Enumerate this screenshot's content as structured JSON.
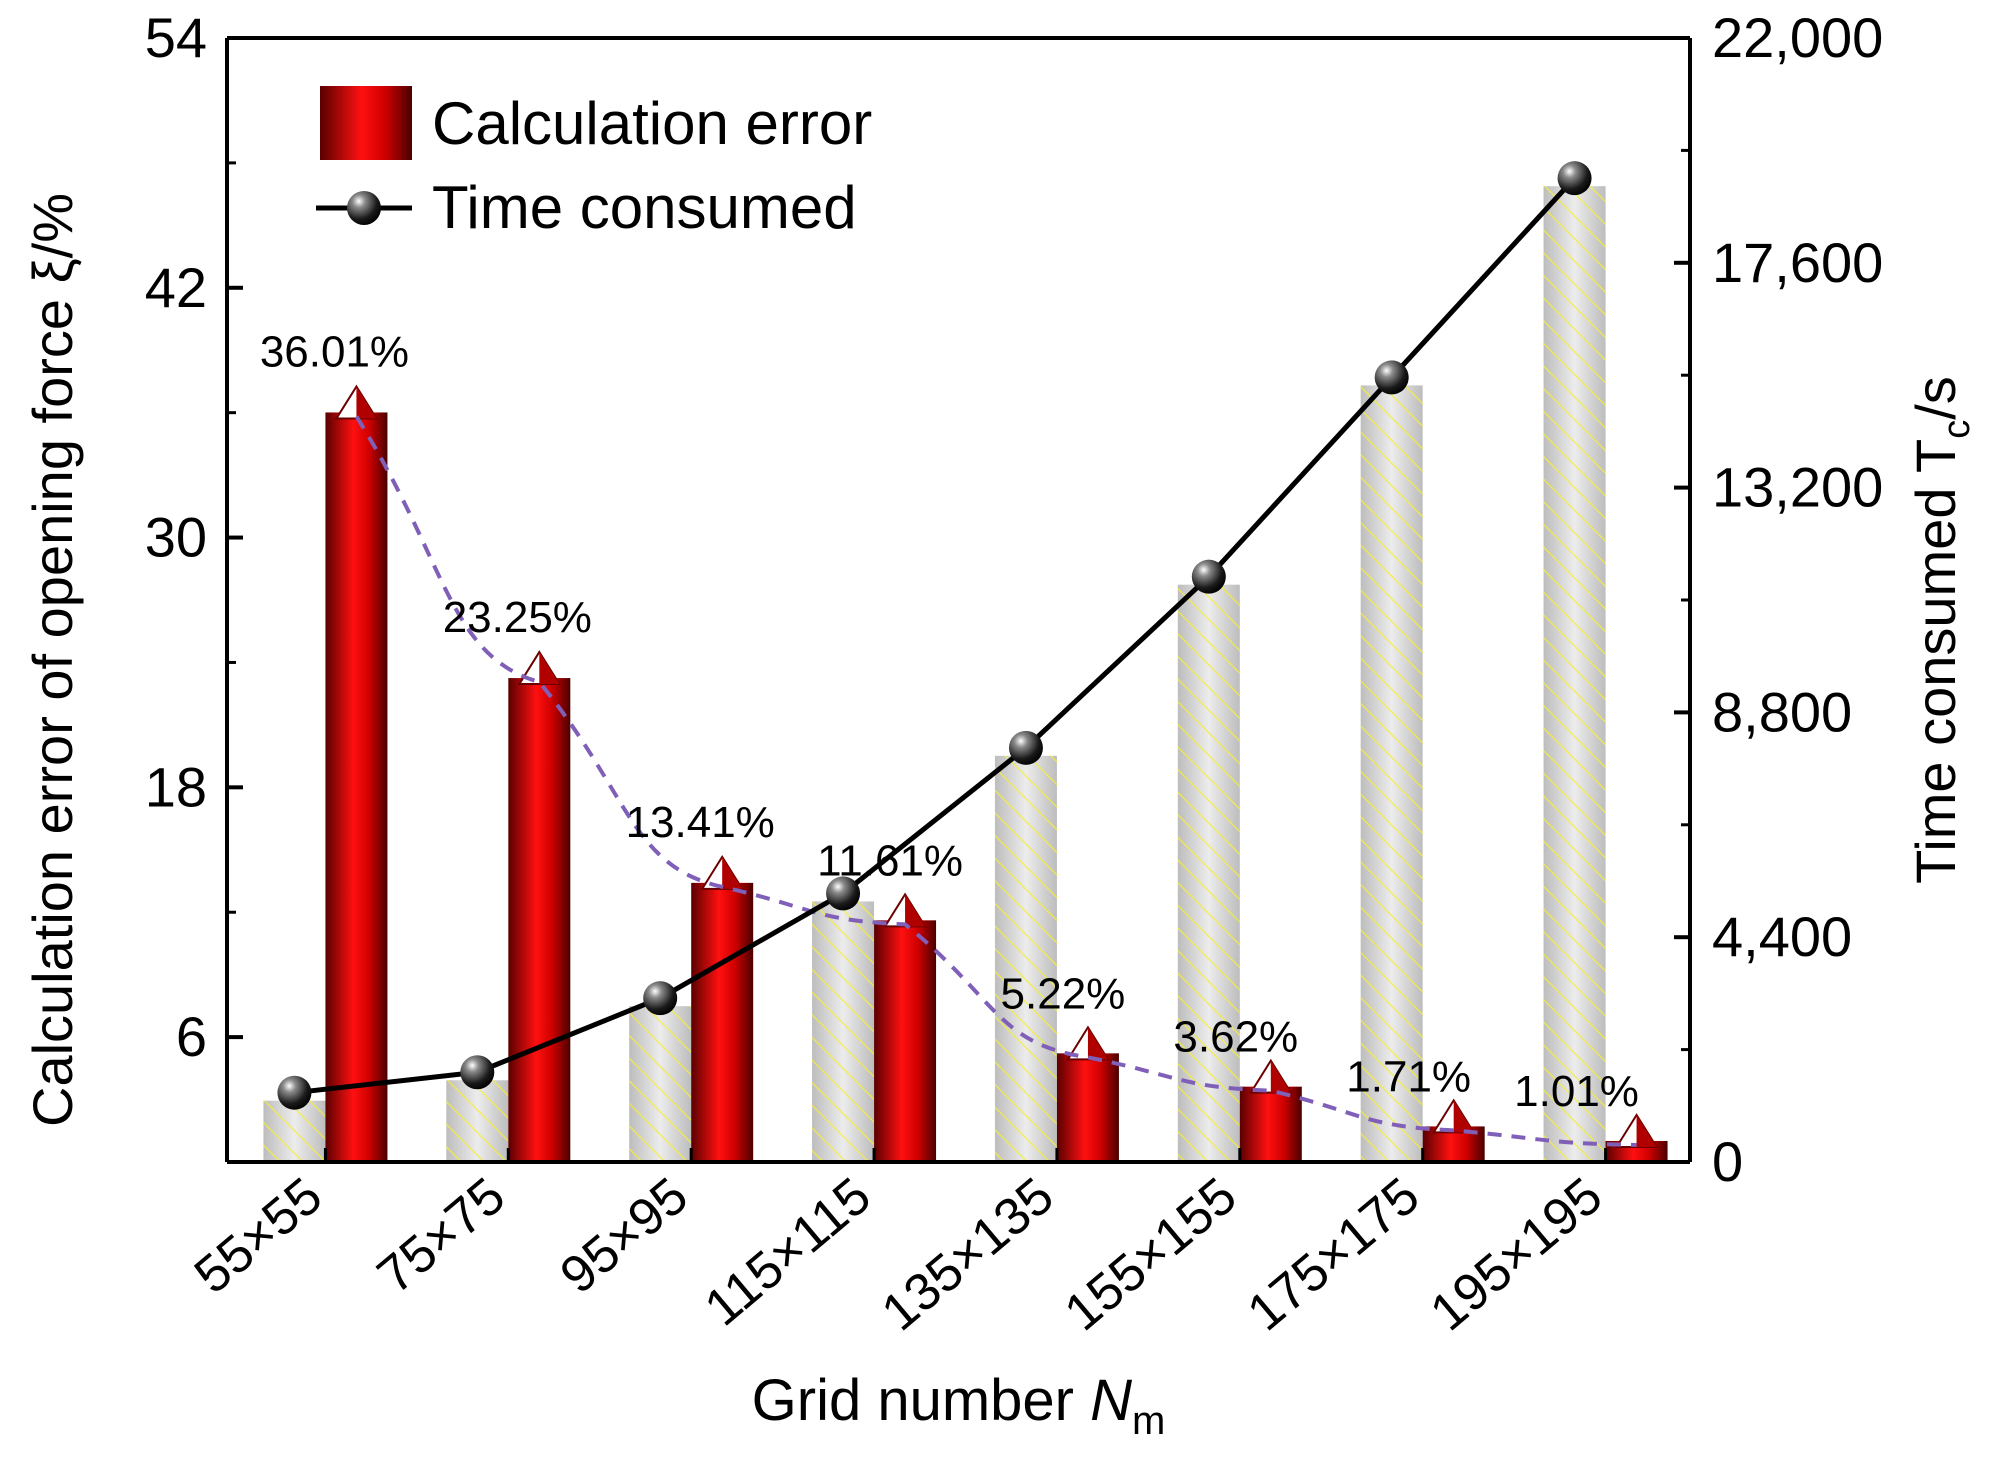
{
  "chart_data": {
    "type": "bar",
    "title": "",
    "xlabel": "Grid number",
    "xlabel_symbol": "N",
    "xlabel_subscript": "m",
    "ylabel_left": "Calculation error of opening force ξ/%",
    "ylabel_right": "Time consumed T",
    "ylabel_right_subscript": "c",
    "ylabel_right_suffix": "/s",
    "categories": [
      "55×55",
      "75×75",
      "95×95",
      "115×115",
      "135×135",
      "155×155",
      "175×175",
      "195×195"
    ],
    "ylim_left": [
      0,
      54
    ],
    "yticks_left": [
      "54",
      "42",
      "30",
      "18",
      "6"
    ],
    "yticks_left_values": [
      54,
      42,
      30,
      18,
      6
    ],
    "ylim_right": [
      0,
      22000
    ],
    "yticks_right": [
      "22,000",
      "17,600",
      "13,200",
      "8,800",
      "4,400",
      "0"
    ],
    "yticks_right_values": [
      22000,
      17600,
      13200,
      8800,
      4400,
      0
    ],
    "series": [
      {
        "name": "Calculation error",
        "axis": "left",
        "kind": "bar",
        "color": "#d40000",
        "values": [
          36.01,
          23.25,
          13.41,
          11.61,
          5.22,
          3.62,
          1.71,
          1.01
        ],
        "labels": [
          "36.01%",
          "23.25%",
          "13.41%",
          "11.61%",
          "5.22%",
          "3.62%",
          "1.71%",
          "1.01%"
        ]
      },
      {
        "name": "Time consumed",
        "axis": "right",
        "kind": "bar+line",
        "bar_color": "#d9d9d9",
        "hatch_color": "#f2e94a",
        "line_color": "#000000",
        "values": [
          1200,
          1600,
          3050,
          5100,
          7950,
          11300,
          15200,
          19100
        ]
      }
    ],
    "trend_line": {
      "style": "dashed",
      "color": "#7f5fb8"
    },
    "legend": {
      "position": "top-left",
      "entries": [
        "Calculation error",
        "Time consumed"
      ]
    }
  }
}
